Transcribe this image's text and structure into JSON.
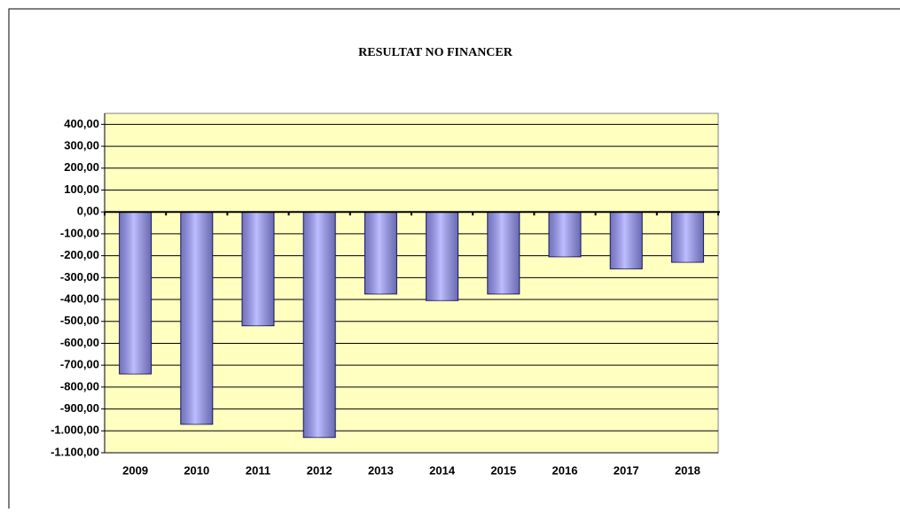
{
  "chart_data": {
    "type": "bar",
    "title": "RESULTAT NO FINANCER",
    "categories": [
      "2009",
      "2010",
      "2011",
      "2012",
      "2013",
      "2014",
      "2015",
      "2016",
      "2017",
      "2018"
    ],
    "values": [
      -740,
      -970,
      -520,
      -1030,
      -375,
      -405,
      -375,
      -205,
      -260,
      -230
    ],
    "color": "#9999ff",
    "background": "#ffffc0",
    "ylim": [
      -1100,
      450
    ],
    "yticks": [
      {
        "value": 400,
        "label": "400,00"
      },
      {
        "value": 300,
        "label": "300,00"
      },
      {
        "value": 200,
        "label": "200,00"
      },
      {
        "value": 100,
        "label": "100,00"
      },
      {
        "value": 0,
        "label": "0,00"
      },
      {
        "value": -100,
        "label": "-100,00"
      },
      {
        "value": -200,
        "label": "-200,00"
      },
      {
        "value": -300,
        "label": "-300,00"
      },
      {
        "value": -400,
        "label": "-400,00"
      },
      {
        "value": -500,
        "label": "-500,00"
      },
      {
        "value": -600,
        "label": "-600,00"
      },
      {
        "value": -700,
        "label": "-700,00"
      },
      {
        "value": -800,
        "label": "-800,00"
      },
      {
        "value": -900,
        "label": "-900,00"
      },
      {
        "value": -1000,
        "label": "-1.000,00"
      },
      {
        "value": -1100,
        "label": "-1.100,00"
      }
    ],
    "grid": true
  }
}
